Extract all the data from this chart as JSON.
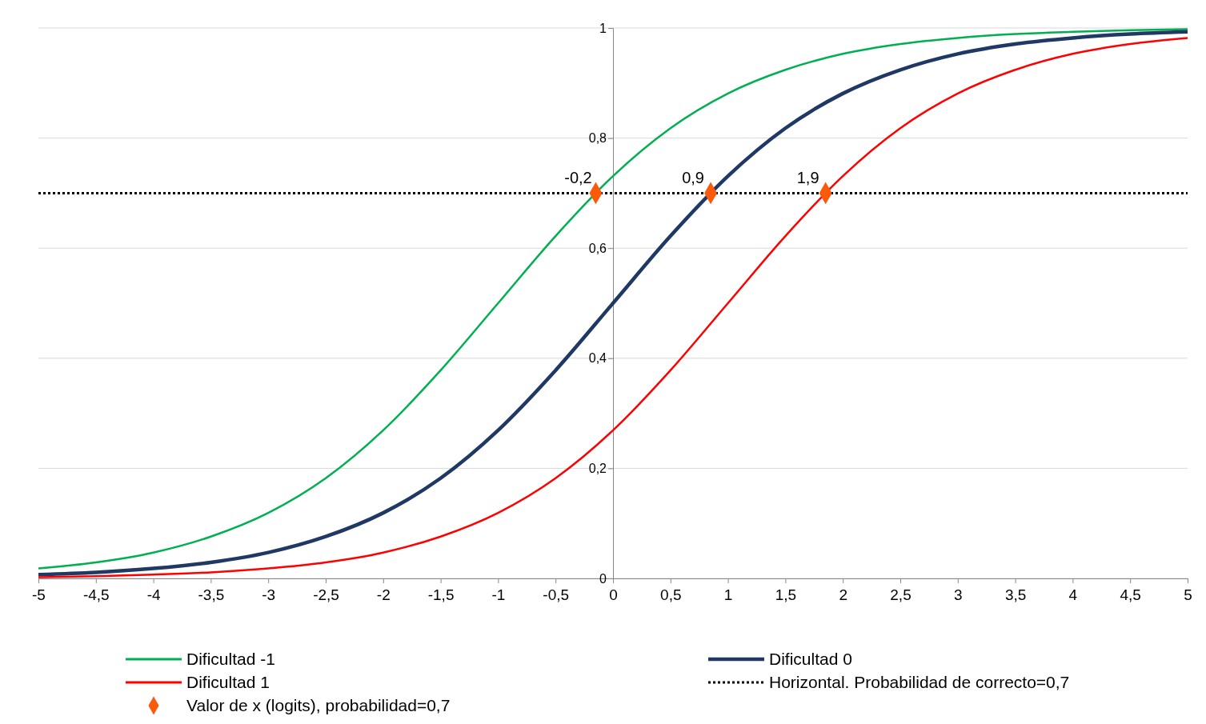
{
  "chart_data": {
    "type": "line",
    "x": [
      -5,
      -4.5,
      -4,
      -3.5,
      -3,
      -2.5,
      -2,
      -1.5,
      -1,
      -0.5,
      0,
      0.5,
      1,
      1.5,
      2,
      2.5,
      3,
      3.5,
      4,
      4.5,
      5
    ],
    "xlim": [
      -5,
      5
    ],
    "xticks": [
      -5,
      {
        "value": -4.5,
        "label": "-4,5"
      },
      -4,
      {
        "value": -3.5,
        "label": "-3,5"
      },
      -3,
      {
        "value": -2.5,
        "label": "-2,5"
      },
      -2,
      {
        "value": -1.5,
        "label": "-1,5"
      },
      -1,
      {
        "value": -0.5,
        "label": "-0,5"
      },
      0,
      {
        "value": 0.5,
        "label": "0,5"
      },
      1,
      {
        "value": 1.5,
        "label": "1,5"
      },
      2,
      {
        "value": 2.5,
        "label": "2,5"
      },
      3,
      {
        "value": 3.5,
        "label": "3,5"
      },
      4,
      {
        "value": 4.5,
        "label": "4,5"
      },
      5
    ],
    "ylim": [
      0,
      1
    ],
    "yticks": [
      0,
      {
        "value": 0.2,
        "label": "0,2"
      },
      {
        "value": 0.4,
        "label": "0,4"
      },
      {
        "value": 0.6,
        "label": "0,6"
      },
      {
        "value": 0.8,
        "label": "0,8"
      },
      1
    ],
    "grid": "y",
    "legend": "bottom",
    "marker": "none",
    "series": [
      {
        "name": "Dificultad -1",
        "color": "#00b050",
        "values": [
          0.018,
          0.029,
          0.047,
          0.076,
          0.119,
          0.182,
          0.269,
          0.378,
          0.5,
          0.622,
          0.731,
          0.818,
          0.881,
          0.924,
          0.953,
          0.971,
          0.982,
          0.989,
          0.993,
          0.996,
          0.998
        ]
      },
      {
        "name": "Dificultad 0",
        "color": "#1f3864",
        "values": [
          0.007,
          0.011,
          0.018,
          0.029,
          0.047,
          0.076,
          0.119,
          0.182,
          0.269,
          0.378,
          0.5,
          0.622,
          0.731,
          0.818,
          0.881,
          0.924,
          0.953,
          0.971,
          0.982,
          0.989,
          0.993
        ]
      },
      {
        "name": "Dificultad 1",
        "color": "#ff0000",
        "values": [
          0.002,
          0.004,
          0.007,
          0.011,
          0.018,
          0.029,
          0.047,
          0.076,
          0.119,
          0.182,
          0.269,
          0.378,
          0.5,
          0.622,
          0.731,
          0.818,
          0.881,
          0.924,
          0.953,
          0.971,
          0.982
        ]
      },
      {
        "name": "Horizontal. Probabilidad de correcto=0,7",
        "color": "#000000",
        "line_style": "dotted",
        "x": [
          -5,
          5
        ],
        "values": [
          0.7,
          0.7
        ]
      },
      {
        "name": "Valor de x (logits), probabilidad=0,7",
        "type": "scatter",
        "marker": "diamond",
        "color": "#fa5a0a",
        "x": [
          -0.15,
          0.85,
          1.85
        ],
        "values": [
          0.7,
          0.7,
          0.7
        ]
      }
    ],
    "annotations": [
      {
        "text": "-0,2",
        "x": -0.15,
        "y": 0.7
      },
      {
        "text": "0,9",
        "x": 0.85,
        "y": 0.7
      },
      {
        "text": "1,9",
        "x": 1.85,
        "y": 0.7
      }
    ]
  }
}
